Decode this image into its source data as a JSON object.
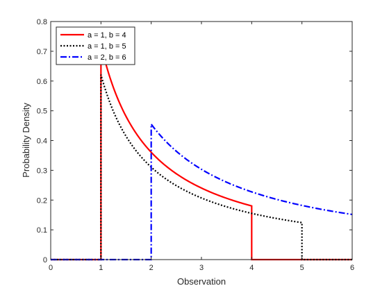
{
  "chart_data": {
    "type": "line",
    "xlabel": "Observation",
    "ylabel": "Probability Density",
    "xlim": [
      0,
      6
    ],
    "ylim": [
      0,
      0.8
    ],
    "xticks": [
      0,
      1,
      2,
      3,
      4,
      5,
      6
    ],
    "yticks": [
      0,
      0.1,
      0.2,
      0.3,
      0.4,
      0.5,
      0.6,
      0.7,
      0.8
    ],
    "xtick_labels": [
      "0",
      "1",
      "2",
      "3",
      "4",
      "5",
      "6"
    ],
    "ytick_labels": [
      "0",
      "0.1",
      "0.2",
      "0.3",
      "0.4",
      "0.5",
      "0.6",
      "0.7",
      "0.8"
    ],
    "grid": false,
    "legend_position": "top-left",
    "series": [
      {
        "name": "a = 1, b = 4",
        "color": "#ff0000",
        "style": "solid",
        "a": 1,
        "b": 4
      },
      {
        "name": "a = 1, b = 5",
        "color": "#000000",
        "style": "dotted",
        "a": 1,
        "b": 5
      },
      {
        "name": "a = 2, b = 6",
        "color": "#0000ff",
        "style": "dashdot",
        "a": 2,
        "b": 6
      }
    ]
  }
}
